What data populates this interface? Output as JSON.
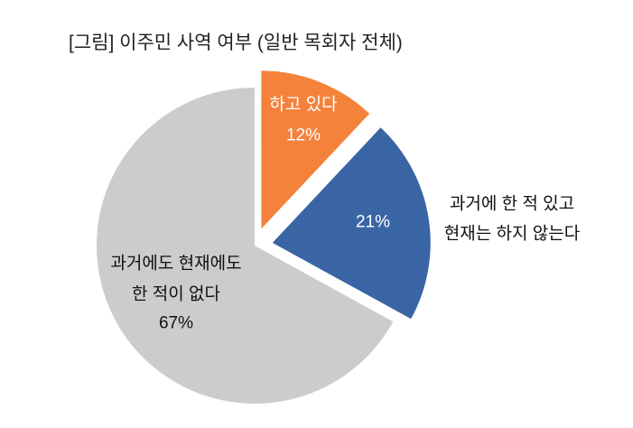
{
  "chart_data": {
    "type": "pie",
    "title": "[그림] 이주민 사역 여부 (일반 목회자 전체)",
    "slices": [
      {
        "label": [
          "하고 있다"
        ],
        "value": 12,
        "value_label": "12%",
        "color": "#F5823A",
        "label_color": "#FFFFFF",
        "value_label_color": "#FFFFFF",
        "label_placement": "inside",
        "exploded": true
      },
      {
        "label": [
          "과거에 한 적 있고",
          "현재는 하지 않는다"
        ],
        "value": 21,
        "value_label": "21%",
        "color": "#3A65A5",
        "label_color": "#111111",
        "value_label_color": "#FFFFFF",
        "label_placement": "outside",
        "exploded": true
      },
      {
        "label": [
          "과거에도 현재에도",
          "한 적이 없다"
        ],
        "value": 67,
        "value_label": "67%",
        "color": "#CCCCCC",
        "label_color": "#111111",
        "value_label_color": "#111111",
        "label_placement": "inside",
        "exploded": false
      }
    ]
  }
}
